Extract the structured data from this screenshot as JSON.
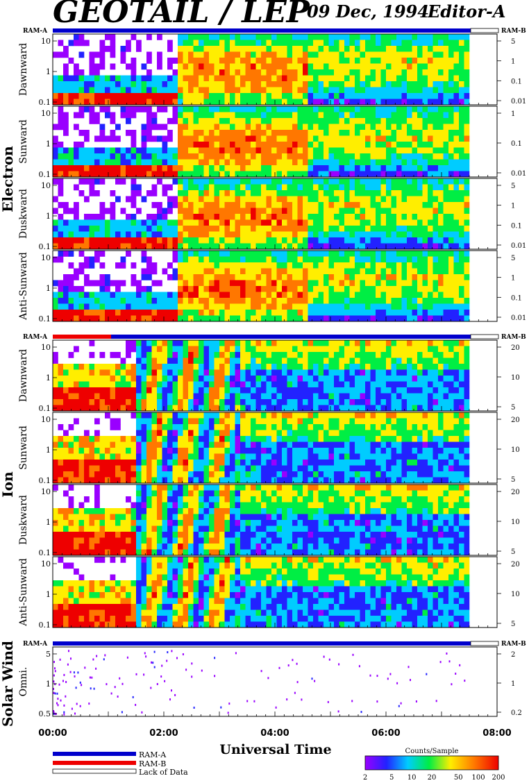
{
  "header": {
    "title": "GEOTAIL / LEP",
    "date": "09 Dec, 1994",
    "editor": "Editor-A"
  },
  "groups": {
    "electron": "Electron",
    "ion": "Ion",
    "solar_wind": "Solar Wind"
  },
  "ram": {
    "a": "RAM-A",
    "b": "RAM-B"
  },
  "legend": {
    "ram_a": "RAM-A",
    "ram_b": "RAM-B",
    "lack": "Lack of Data",
    "colorbar_title": "Counts/Sample",
    "colorbar_ticks": [
      "2",
      "5",
      "10",
      "20",
      "50",
      "100",
      "200"
    ]
  },
  "xaxis": {
    "label": "Universal Time",
    "ticks": [
      "00:00",
      "02:00",
      "04:00",
      "06:00",
      "08:00"
    ]
  },
  "colors": {
    "ram_a": "#0000cc",
    "ram_b": "#ee0000",
    "background": "#ffffff"
  },
  "chart_data": {
    "type": "heatmap",
    "x_range_hours": [
      0,
      8
    ],
    "data_end_hour": 7.5,
    "colorbar": {
      "label": "Counts/Sample",
      "range": [
        2,
        200
      ],
      "scale": "log"
    },
    "panels": [
      {
        "group": "Electron",
        "name": "Dawnward",
        "left_ticks": [
          "0.1",
          "1",
          "10"
        ],
        "right_ticks": [
          "5",
          "1",
          "0.1",
          "0.01"
        ],
        "ram_b_intervals": []
      },
      {
        "group": "Electron",
        "name": "Sunward",
        "left_ticks": [
          "0.1",
          "1",
          "10"
        ],
        "right_ticks": [
          "1",
          "0.1",
          "0.01"
        ],
        "ram_b_intervals": []
      },
      {
        "group": "Electron",
        "name": "Duskward",
        "left_ticks": [
          "0.1",
          "1",
          "10"
        ],
        "right_ticks": [
          "5",
          "1",
          "0.1",
          "0.01"
        ],
        "ram_b_intervals": []
      },
      {
        "group": "Electron",
        "name": "Anti-Sunward",
        "left_ticks": [
          "0.1",
          "1",
          "10"
        ],
        "right_ticks": [
          "5",
          "1",
          "0.1",
          "0.01"
        ],
        "ram_b_intervals": []
      },
      {
        "group": "Ion",
        "name": "Dawnward",
        "left_ticks": [
          "0.1",
          "1",
          "10"
        ],
        "right_ticks": [
          "20",
          "10",
          "5"
        ],
        "ram_b_intervals": [
          [
            0.0,
            0.8
          ],
          [
            0.85,
            1.05
          ]
        ]
      },
      {
        "group": "Ion",
        "name": "Sunward",
        "left_ticks": [
          "0.1",
          "1",
          "10"
        ],
        "right_ticks": [
          "20",
          "10",
          "5"
        ],
        "ram_b_intervals": []
      },
      {
        "group": "Ion",
        "name": "Duskward",
        "left_ticks": [
          "0.1",
          "1",
          "10"
        ],
        "right_ticks": [
          "20",
          "10",
          "5"
        ],
        "ram_b_intervals": []
      },
      {
        "group": "Ion",
        "name": "Anti-Sunward",
        "left_ticks": [
          "0.1",
          "1",
          "10"
        ],
        "right_ticks": [
          "20",
          "10",
          "5"
        ],
        "ram_b_intervals": []
      },
      {
        "group": "Solar Wind",
        "name": "Omni.",
        "left_ticks": [
          "0.5",
          "1",
          "5"
        ],
        "right_ticks": [
          "2",
          "1",
          "0.2"
        ],
        "ram_b_intervals": []
      }
    ]
  }
}
